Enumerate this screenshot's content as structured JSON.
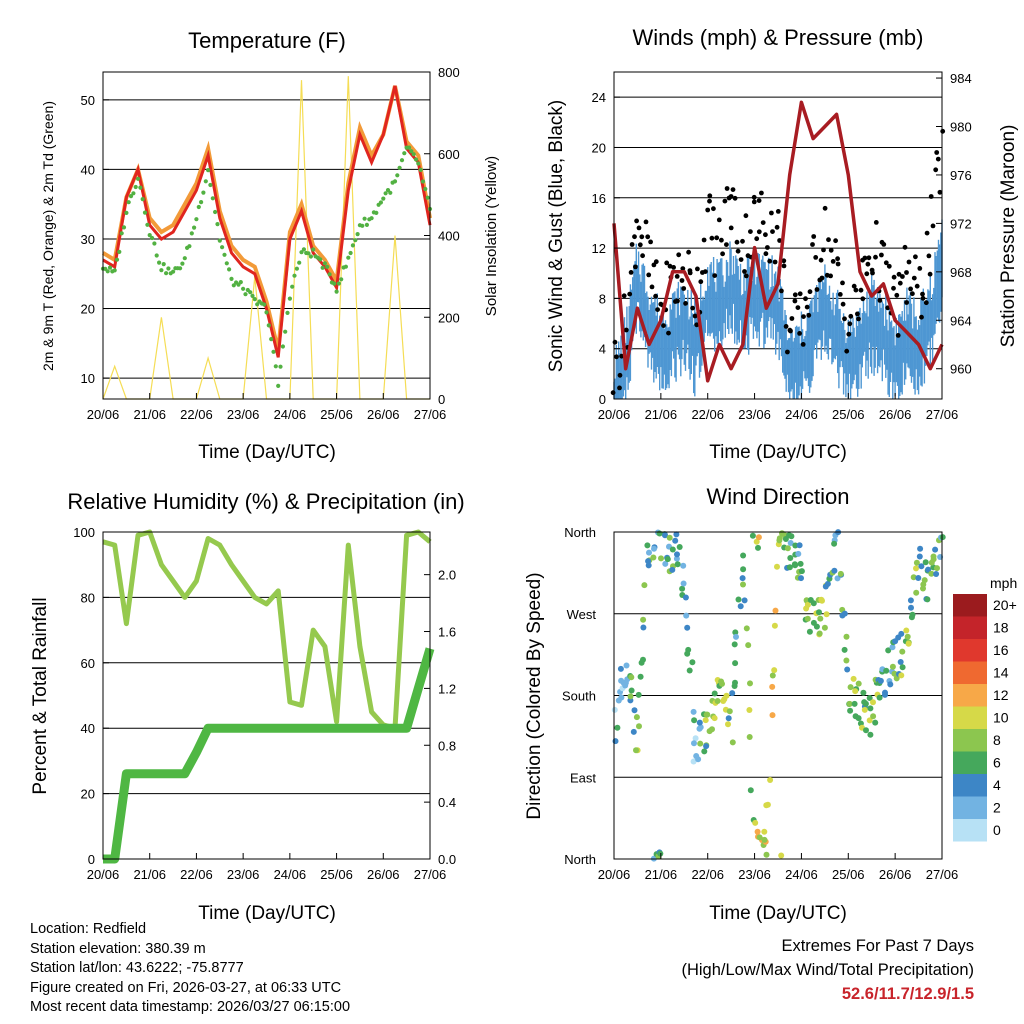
{
  "colors": {
    "temp2m": "#e0251f",
    "temp9m": "#f29a38",
    "dewpoint": "#52b142",
    "solar": "#f5dd55",
    "gust": "#000000",
    "wind": "#4e97d3",
    "pressure": "#a81c22",
    "rh": "#95c94e",
    "rain": "#4fb743",
    "extremes": "#c8242b"
  },
  "time_ticks": [
    "20/06",
    "21/06",
    "22/06",
    "23/06",
    "24/06",
    "25/06",
    "26/06",
    "27/06"
  ],
  "chart_data": [
    {
      "id": "temperature",
      "type": "line",
      "title": "Temperature (F)",
      "xlabel": "Time (Day/UTC)",
      "ylabel": "2m & 9m T (Red, Orange) & 2m Td (Green)",
      "y2label": "Solar Insolation (Yellow)",
      "ylim": [
        7,
        54
      ],
      "yticks": [
        10,
        20,
        30,
        40,
        50
      ],
      "y2lim": [
        0,
        800
      ],
      "y2ticks": [
        0,
        200,
        400,
        600,
        800
      ],
      "x": [
        0,
        0.25,
        0.5,
        0.75,
        1.0,
        1.25,
        1.5,
        1.75,
        2.0,
        2.25,
        2.5,
        2.75,
        3.0,
        3.25,
        3.5,
        3.75,
        4.0,
        4.25,
        4.5,
        4.75,
        5.0,
        5.25,
        5.5,
        5.75,
        6.0,
        6.25,
        6.5,
        6.75,
        7.0
      ],
      "series": [
        {
          "name": "2m T",
          "values": [
            27,
            26,
            36,
            40,
            32,
            30,
            31,
            34,
            37,
            42,
            33,
            28,
            26,
            25,
            20,
            13,
            30,
            34,
            28,
            26,
            23,
            37,
            45,
            41,
            45,
            52,
            43,
            41,
            32
          ]
        },
        {
          "name": "9m T",
          "values": [
            28,
            27,
            36,
            40,
            33,
            31,
            32,
            35,
            38,
            43,
            34,
            29,
            27,
            26,
            21,
            14,
            31,
            35,
            29,
            27,
            24,
            38,
            46,
            42,
            45,
            52,
            44,
            42,
            33
          ]
        },
        {
          "name": "2m Td",
          "values": [
            26,
            25,
            34,
            39,
            31,
            26,
            25,
            27,
            33,
            40,
            30,
            24,
            23,
            21,
            20,
            9,
            22,
            28,
            28,
            26,
            23,
            27,
            32,
            33,
            36,
            38,
            43,
            41,
            34
          ]
        },
        {
          "name": "Solar Insolation",
          "axis": "y2",
          "values": [
            0,
            80,
            0,
            0,
            0,
            200,
            0,
            0,
            0,
            100,
            0,
            0,
            0,
            300,
            0,
            0,
            0,
            780,
            0,
            0,
            0,
            790,
            0,
            0,
            0,
            400,
            0,
            0,
            0
          ]
        }
      ]
    },
    {
      "id": "winds",
      "type": "scatter",
      "title": "Winds (mph) & Pressure (mb)",
      "xlabel": "Time (Day/UTC)",
      "ylabel": "Sonic Wind & Gust (Blue, Black)",
      "y2label": "Station Pressure (Maroon)",
      "ylim": [
        0,
        26
      ],
      "yticks": [
        0,
        4,
        8,
        12,
        16,
        20,
        24
      ],
      "y2lim": [
        957.5,
        984.5
      ],
      "y2ticks": [
        960,
        964,
        968,
        972,
        976,
        980,
        984
      ],
      "x": [
        0,
        0.25,
        0.5,
        0.75,
        1.0,
        1.25,
        1.5,
        1.75,
        2.0,
        2.25,
        2.5,
        2.75,
        3.0,
        3.25,
        3.5,
        3.75,
        4.0,
        4.25,
        4.5,
        4.75,
        5.0,
        5.25,
        5.5,
        5.75,
        6.0,
        6.25,
        6.5,
        6.75,
        7.0
      ],
      "series": [
        {
          "name": "Gust",
          "values": [
            2,
            6,
            15,
            10,
            7,
            9,
            10,
            8,
            14,
            12,
            16,
            12,
            14,
            14,
            13,
            5,
            6,
            10,
            13,
            10,
            6,
            8,
            12,
            10,
            7,
            10,
            8,
            12,
            20
          ]
        },
        {
          "name": "Wind",
          "values": [
            1,
            4,
            10,
            7,
            5,
            6,
            7,
            5,
            9,
            8,
            10,
            8,
            9,
            9,
            8,
            3,
            4,
            6,
            8,
            6,
            4,
            5,
            7,
            6,
            4,
            6,
            5,
            7,
            12
          ]
        },
        {
          "name": "Pressure",
          "axis": "y2",
          "values": [
            972,
            960,
            965,
            962,
            964,
            968,
            968,
            966,
            959,
            962,
            960,
            962,
            970,
            965,
            967,
            976,
            982,
            979,
            980,
            981,
            976,
            968,
            966,
            967,
            964,
            963,
            962,
            960,
            962
          ]
        }
      ]
    },
    {
      "id": "humidity",
      "type": "line",
      "title": "Relative Humidity (%) & Precipitation (in)",
      "xlabel": "Time (Day/UTC)",
      "ylabel": "Percent & Total Rainfall",
      "ylim": [
        0,
        100
      ],
      "yticks": [
        0,
        20,
        40,
        60,
        80,
        100
      ],
      "y2lim": [
        0,
        2.3
      ],
      "y2ticks": [
        "0.0",
        "0.4",
        "0.8",
        "1.2",
        "1.6",
        "2.0"
      ],
      "x": [
        0,
        0.25,
        0.5,
        0.75,
        1.0,
        1.25,
        1.5,
        1.75,
        2.0,
        2.25,
        2.5,
        2.75,
        3.0,
        3.25,
        3.5,
        3.75,
        4.0,
        4.25,
        4.5,
        4.75,
        5.0,
        5.25,
        5.5,
        5.75,
        6.0,
        6.25,
        6.5,
        6.75,
        7.0
      ],
      "series": [
        {
          "name": "Relative Humidity",
          "values": [
            97,
            96,
            72,
            99,
            100,
            90,
            85,
            80,
            85,
            98,
            96,
            90,
            85,
            80,
            78,
            82,
            48,
            47,
            70,
            65,
            42,
            96,
            65,
            45,
            41,
            40,
            99,
            100,
            97
          ]
        },
        {
          "name": "Total Precipitation",
          "axis": "y2",
          "values": [
            0,
            0,
            0.6,
            0.6,
            0.6,
            0.6,
            0.6,
            0.6,
            0.75,
            0.92,
            0.92,
            0.92,
            0.92,
            0.92,
            0.92,
            0.92,
            0.92,
            0.92,
            0.92,
            0.92,
            0.92,
            0.92,
            0.92,
            0.92,
            0.92,
            0.92,
            0.92,
            1.2,
            1.48
          ]
        }
      ]
    },
    {
      "id": "direction",
      "type": "scatter",
      "title": "Wind Direction",
      "xlabel": "Time (Day/UTC)",
      "ylabel": "Direction (Colored By Speed)",
      "yticks": [
        "North",
        "East",
        "South",
        "West",
        "North"
      ],
      "ylim": [
        0,
        360
      ],
      "colorbar": {
        "title": "mph",
        "labels": [
          "20+",
          "18",
          "16",
          "14",
          "12",
          "10",
          "8",
          "6",
          "4",
          "2",
          "0"
        ],
        "colors": [
          "#9b1b1e",
          "#c4242a",
          "#e0382d",
          "#ef6930",
          "#f7a848",
          "#d6d948",
          "#8cc64f",
          "#45a85c",
          "#3d86c6",
          "#72b3e2",
          "#b7e1f5"
        ]
      },
      "x": [
        0,
        0.25,
        0.5,
        0.75,
        1.0,
        1.25,
        1.5,
        1.75,
        2.0,
        2.25,
        2.5,
        2.75,
        3.0,
        3.25,
        3.5,
        3.75,
        4.0,
        4.25,
        4.5,
        4.75,
        5.0,
        5.25,
        5.5,
        5.75,
        6.0,
        6.25,
        6.5,
        6.75,
        7.0
      ],
      "series": [
        {
          "name": "Direction",
          "values": [
            150,
            200,
            140,
            340,
            345,
            340,
            300,
            110,
            150,
            180,
            150,
            340,
            5,
            10,
            340,
            340,
            320,
            260,
            270,
            350,
            180,
            170,
            160,
            200,
            220,
            230,
            320,
            300,
            340
          ]
        },
        {
          "name": "Speed",
          "values": [
            2,
            4,
            8,
            6,
            5,
            5,
            4,
            3,
            8,
            9,
            6,
            4,
            9,
            10,
            9,
            5,
            6,
            8,
            8,
            4,
            6,
            7,
            8,
            6,
            5,
            7,
            6,
            6,
            4
          ]
        }
      ]
    }
  ],
  "footer": {
    "location": "Location: Redfield",
    "elevation": "Station elevation: 380.39 m",
    "latlon": "Station lat/lon: 43.6222; -75.8777",
    "created": "Figure created on Fri, 2026-03-27, at 06:33 UTC",
    "recent": "Most recent data timestamp: 2026/03/27 06:15:00"
  },
  "extremes": {
    "title": "Extremes For Past 7 Days",
    "subtitle": "(High/Low/Max Wind/Total Precipitation)",
    "value": "52.6/11.7/12.9/1.5"
  }
}
